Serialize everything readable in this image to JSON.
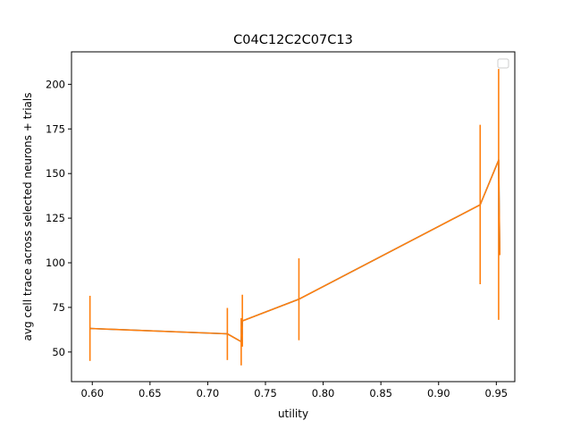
{
  "chart_data": {
    "type": "line",
    "title": "C04C12C2C07C13",
    "xlabel": "utility",
    "ylabel": "avg cell trace across selected neurons + trials",
    "xlim": [
      0.582,
      0.966
    ],
    "ylim": [
      33.4,
      218.2
    ],
    "xticks": [
      0.6,
      0.65,
      0.7,
      0.75,
      0.8,
      0.85,
      0.9,
      0.95
    ],
    "xtick_labels": [
      "0.60",
      "0.65",
      "0.70",
      "0.75",
      "0.80",
      "0.85",
      "0.90",
      "0.95"
    ],
    "yticks": [
      50,
      75,
      100,
      125,
      150,
      175,
      200
    ],
    "ytick_labels": [
      "50",
      "75",
      "100",
      "125",
      "150",
      "175",
      "200"
    ],
    "grid": false,
    "legend": {
      "location": "upper right",
      "entries": []
    },
    "colors": {
      "line": "#ff7f0e",
      "overlay_line": "#1f77b4",
      "errorbar": "#ff7f0e",
      "axes": "#000000"
    },
    "series": [
      {
        "x": [
          0.598,
          0.717,
          0.729,
          0.73,
          0.779,
          0.936,
          0.952,
          0.953
        ],
        "y": [
          63.2,
          60.2,
          55.8,
          67.4,
          79.6,
          132.5,
          157.5,
          104.6
        ],
        "yerr_low": [
          45.0,
          45.5,
          42.5,
          53.0,
          56.6,
          88.0,
          68.0,
          104.6
        ],
        "yerr_high": [
          81.5,
          74.7,
          69.0,
          82.1,
          102.5,
          177.3,
          208.6,
          104.6
        ]
      }
    ]
  }
}
